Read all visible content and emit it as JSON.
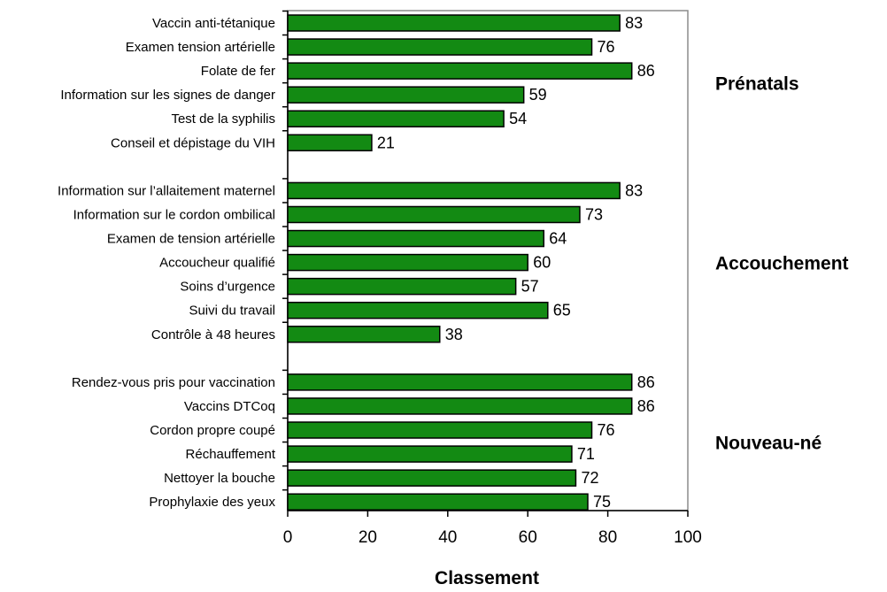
{
  "chart_data": {
    "type": "bar",
    "orientation": "horizontal",
    "xlabel": "Classement",
    "xlim": [
      0,
      100
    ],
    "xticks": [
      0,
      20,
      40,
      60,
      80,
      100
    ],
    "bar_color": "#138A13",
    "bar_border": "#000000",
    "groups": [
      {
        "name": "Prénatals",
        "categories": [
          "Vaccin anti-tétanique",
          "Examen tension artérielle",
          "Folate de fer",
          "Information sur les signes de danger",
          "Test de la syphilis",
          "Conseil et dépistage du VIH"
        ],
        "values": [
          83,
          76,
          86,
          59,
          54,
          21
        ]
      },
      {
        "name": "Accouchement",
        "categories": [
          "Information sur l’allaitement maternel",
          "Information sur le cordon ombilical",
          "Examen de tension artérielle",
          "Accoucheur qualifié",
          "Soins d’urgence",
          "Suivi du travail",
          "Contrôle à 48 heures"
        ],
        "values": [
          83,
          73,
          64,
          60,
          57,
          65,
          38
        ]
      },
      {
        "name": "Nouveau-né",
        "categories": [
          "Rendez-vous pris pour vaccination",
          "Vaccins DTCoq",
          "Cordon propre coupé",
          "Réchauffement",
          "Nettoyer la bouche",
          "Prophylaxie des yeux"
        ],
        "values": [
          86,
          86,
          76,
          71,
          72,
          75
        ]
      }
    ]
  }
}
